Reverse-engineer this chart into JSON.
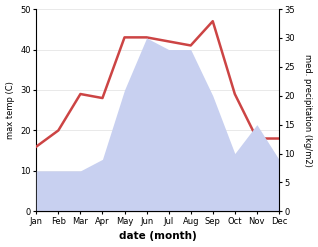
{
  "months": [
    "Jan",
    "Feb",
    "Mar",
    "Apr",
    "May",
    "Jun",
    "Jul",
    "Aug",
    "Sep",
    "Oct",
    "Nov",
    "Dec"
  ],
  "temperature": [
    16,
    20,
    29,
    28,
    43,
    43,
    42,
    41,
    47,
    29,
    18,
    18
  ],
  "precipitation": [
    7,
    7,
    7,
    9,
    21,
    30,
    28,
    28,
    20,
    10,
    15,
    9
  ],
  "temp_color": "#cc4444",
  "precip_fill_color": "#c8d0f0",
  "temp_ylim": [
    0,
    50
  ],
  "precip_ylim": [
    0,
    35
  ],
  "temp_yticks": [
    0,
    10,
    20,
    30,
    40,
    50
  ],
  "precip_yticks": [
    0,
    5,
    10,
    15,
    20,
    25,
    30,
    35
  ],
  "xlabel": "date (month)",
  "ylabel_left": "max temp (C)",
  "ylabel_right": "med. precipitation (kg/m2)",
  "background_color": "#ffffff",
  "temp_linewidth": 1.8,
  "grid_color": "#e0e0e0"
}
